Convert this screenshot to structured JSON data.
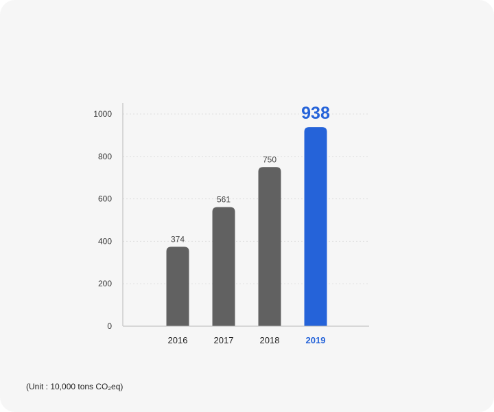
{
  "unit_note": "(Unit : 10,000 tons CO₂eq)",
  "colors": {
    "bar": "#616161",
    "highlight": "#2563d9",
    "axis": "#b8b8b8",
    "grid": "#dddddd"
  },
  "chart_data": {
    "type": "bar",
    "categories": [
      "2016",
      "2017",
      "2018",
      "2019"
    ],
    "values": [
      374,
      561,
      750,
      938
    ],
    "data_labels": [
      "374",
      "561",
      "750",
      "938"
    ],
    "highlight_index": 3,
    "ylim": [
      0,
      1000
    ],
    "yticks": [
      0,
      200,
      400,
      600,
      800,
      1000
    ],
    "ytick_labels": [
      "0",
      "200",
      "400",
      "600",
      "800",
      "1000"
    ],
    "grid": true,
    "title": "",
    "xlabel": "",
    "ylabel": ""
  }
}
